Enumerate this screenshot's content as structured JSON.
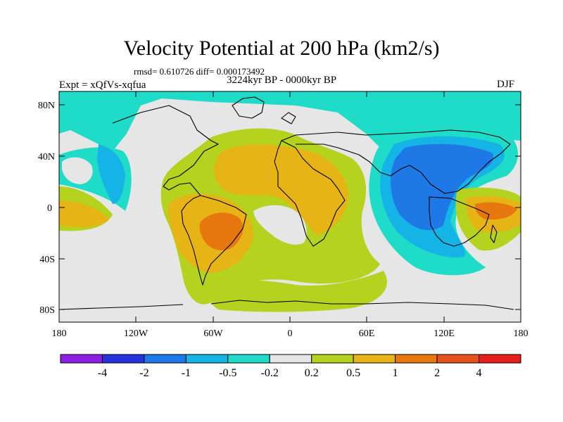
{
  "title": "Velocity Potential at 200 hPa (km2/s)",
  "stats": "rmsd= 0.610726 diff= 0.000173492",
  "experiment": "Expt = xQfVs-xqfua",
  "period": "3224kyr BP - 0000kyr BP",
  "season": "DJF",
  "axes": {
    "y_ticks": [
      "80N",
      "40N",
      "0",
      "40S",
      "80S"
    ],
    "x_ticks": [
      "180",
      "120W",
      "60W",
      "0",
      "60E",
      "120E",
      "180"
    ]
  },
  "colorbar": {
    "labels": [
      "-4",
      "-2",
      "-1",
      "-0.5",
      "-0.2",
      "0.2",
      "0.5",
      "1",
      "2",
      "4"
    ],
    "colors": [
      "#8c1ee6",
      "#2832dc",
      "#1e78e6",
      "#14b4e6",
      "#1edcc8",
      "#e6e6e6",
      "#b4d21e",
      "#e6b414",
      "#e6780f",
      "#e6501e",
      "#e61e1e"
    ]
  },
  "field_colors": {
    "neutral": "#e6e6e6",
    "cyan": "#1edcc8",
    "light_blue": "#14b4e6",
    "blue": "#1e78e6",
    "yellow_green": "#b4d21e",
    "gold": "#e6b414",
    "orange": "#e6780f"
  }
}
